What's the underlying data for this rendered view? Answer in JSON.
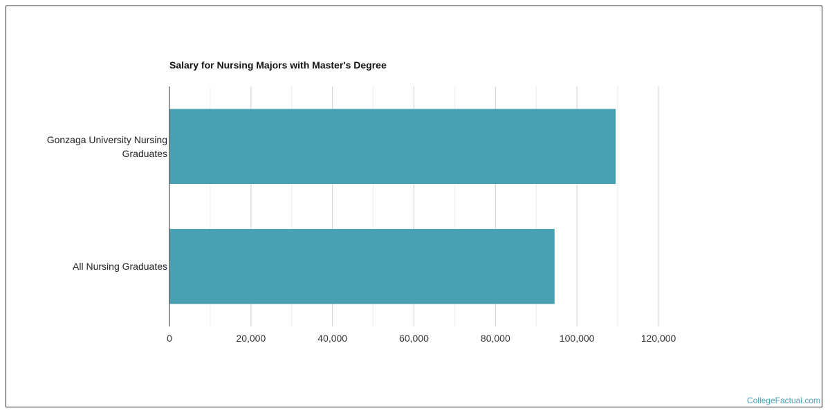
{
  "chart_data": {
    "type": "bar",
    "orientation": "horizontal",
    "title": "Salary for Nursing Majors with Master's Degree",
    "categories": [
      "Gonzaga University Nursing Graduates",
      "All Nursing Graduates"
    ],
    "category_lines": [
      [
        "Gonzaga University Nursing",
        "Graduates"
      ],
      [
        "All Nursing Graduates"
      ]
    ],
    "values": [
      109500,
      94500
    ],
    "xlim": [
      0,
      120000
    ],
    "ticks": [
      "0",
      "20,000",
      "40,000",
      "60,000",
      "80,000",
      "100,000",
      "120,000"
    ],
    "tick_values": [
      0,
      20000,
      40000,
      60000,
      80000,
      100000,
      120000
    ],
    "grid": true,
    "bar_color": "#4aa0b3",
    "grid_color": "#d9d9d9"
  },
  "watermark": "CollegeFactual.com"
}
